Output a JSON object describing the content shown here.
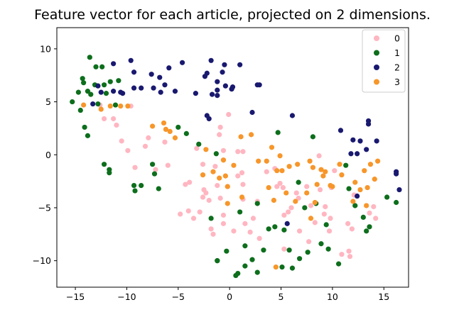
{
  "chart_data": {
    "type": "scatter",
    "title": "Feature vector for each article, projected on 2 dimensions.",
    "xlabel": "",
    "ylabel": "",
    "xlim": [
      -16.8,
      17.4
    ],
    "ylim": [
      -12.5,
      12.0
    ],
    "xticks": [
      -15,
      -10,
      -5,
      0,
      5,
      10,
      15
    ],
    "yticks": [
      -10,
      -5,
      0,
      5,
      10
    ],
    "tick_labels": {
      "x": [
        "−15",
        "−10",
        "−5",
        "0",
        "5",
        "10",
        "15"
      ],
      "y": [
        "−10",
        "−5",
        "0",
        "5",
        "10"
      ]
    },
    "grid": false,
    "legend_position": "top-right",
    "series": [
      {
        "name": "0",
        "color": "#ffb6c1",
        "points": [
          [
            -12.6,
            4.7
          ],
          [
            -12.2,
            3.4
          ],
          [
            -11.3,
            3.4
          ],
          [
            -11.0,
            2.8
          ],
          [
            -10.5,
            1.3
          ],
          [
            -9.9,
            0.4
          ],
          [
            -9.6,
            4.6
          ],
          [
            -9.2,
            -1.2
          ],
          [
            -8.2,
            0.8
          ],
          [
            -7.9,
            1.6
          ],
          [
            -7.2,
            -1.4
          ],
          [
            -6.3,
            1.2
          ],
          [
            -6.0,
            -1.0
          ],
          [
            -4.8,
            -5.6
          ],
          [
            -4.3,
            -2.8
          ],
          [
            -4.0,
            -5.3
          ],
          [
            -3.9,
            -2.6
          ],
          [
            -3.5,
            -6.0
          ],
          [
            -3.2,
            0.6
          ],
          [
            -2.9,
            -5.4
          ],
          [
            -2.6,
            -4.0
          ],
          [
            -2.6,
            -0.9
          ],
          [
            -2.5,
            -3.3
          ],
          [
            -2.3,
            -3.6
          ],
          [
            -2.0,
            -4.3
          ],
          [
            -1.8,
            -7.0
          ],
          [
            -1.6,
            -7.5
          ],
          [
            -1.4,
            -1.1
          ],
          [
            -1.2,
            -2.9
          ],
          [
            -1.0,
            1.9
          ],
          [
            -0.9,
            -4.1
          ],
          [
            -0.9,
            2.6
          ],
          [
            -0.6,
            0.4
          ],
          [
            -0.6,
            -5.7
          ],
          [
            -0.6,
            -0.5
          ],
          [
            -0.6,
            -6.5
          ],
          [
            -0.2,
            -3.0
          ],
          [
            -0.1,
            3.8
          ],
          [
            0.4,
            -7.2
          ],
          [
            0.8,
            0.3
          ],
          [
            0.8,
            -2.0
          ],
          [
            1.2,
            -1.7
          ],
          [
            1.3,
            0.3
          ],
          [
            1.3,
            -2.8
          ],
          [
            1.3,
            -4.2
          ],
          [
            1.5,
            -6.5
          ],
          [
            2.0,
            -7.3
          ],
          [
            2.3,
            -6.0
          ],
          [
            2.7,
            -4.4
          ],
          [
            2.9,
            -7.9
          ],
          [
            3.6,
            -1.6
          ],
          [
            4.4,
            -1.3
          ],
          [
            4.6,
            -3.0
          ],
          [
            4.9,
            -2.7
          ],
          [
            5.2,
            -3.1
          ],
          [
            5.3,
            -5.7
          ],
          [
            5.3,
            -8.9
          ],
          [
            5.7,
            -5.4
          ],
          [
            6.0,
            -5.0
          ],
          [
            6.5,
            -3.6
          ],
          [
            6.7,
            -4.1
          ],
          [
            6.8,
            -7.2
          ],
          [
            7.5,
            -3.0
          ],
          [
            7.7,
            -8.2
          ],
          [
            7.9,
            -4.8
          ],
          [
            8.3,
            -6.4
          ],
          [
            8.7,
            -0.1
          ],
          [
            8.8,
            -3.3
          ],
          [
            9.2,
            -5.6
          ],
          [
            9.3,
            -4.9
          ],
          [
            9.7,
            -7.2
          ],
          [
            9.8,
            -6.0
          ],
          [
            9.9,
            -3.1
          ],
          [
            10.2,
            -1.5
          ],
          [
            10.9,
            -9.4
          ],
          [
            11.5,
            -6.5
          ],
          [
            11.6,
            -9.1
          ],
          [
            11.7,
            -9.6
          ],
          [
            11.9,
            -7.0
          ],
          [
            12.1,
            -3.8
          ],
          [
            13.6,
            -5.5
          ],
          [
            14.0,
            -4.9
          ],
          [
            14.2,
            -6.0
          ]
        ]
      },
      {
        "name": "1",
        "color": "#0d6e1c",
        "points": [
          [
            -15.3,
            5.0
          ],
          [
            -14.7,
            5.9
          ],
          [
            -14.5,
            4.2
          ],
          [
            -14.3,
            7.2
          ],
          [
            -14.2,
            6.8
          ],
          [
            -13.8,
            6.0
          ],
          [
            -14.1,
            2.6
          ],
          [
            -13.8,
            1.8
          ],
          [
            -13.6,
            9.2
          ],
          [
            -13.5,
            5.7
          ],
          [
            -13.1,
            6.6
          ],
          [
            -13.0,
            8.3
          ],
          [
            -12.8,
            4.8
          ],
          [
            -12.4,
            8.3
          ],
          [
            -12.2,
            6.6
          ],
          [
            -12.2,
            -0.9
          ],
          [
            -12.0,
            5.8
          ],
          [
            -11.7,
            -1.4
          ],
          [
            -11.7,
            -1.7
          ],
          [
            -11.6,
            6.9
          ],
          [
            -11.1,
            4.7
          ],
          [
            -10.8,
            7.0
          ],
          [
            -9.3,
            -2.9
          ],
          [
            -9.2,
            -3.4
          ],
          [
            -8.6,
            -2.9
          ],
          [
            -7.5,
            -0.9
          ],
          [
            -7.3,
            -1.8
          ],
          [
            -6.9,
            -3.2
          ],
          [
            -5.0,
            2.6
          ],
          [
            -4.2,
            2.0
          ],
          [
            -3.0,
            1.0
          ],
          [
            -1.8,
            -6.0
          ],
          [
            -1.2,
            -10.0
          ],
          [
            -1.2,
            -10.0
          ],
          [
            -1.3,
            0.1
          ],
          [
            -0.3,
            -9.1
          ],
          [
            0.6,
            -11.4
          ],
          [
            0.8,
            -11.2
          ],
          [
            1.0,
            -5.4
          ],
          [
            1.5,
            -10.5
          ],
          [
            1.5,
            -8.6
          ],
          [
            2.2,
            -9.9
          ],
          [
            2.7,
            -11.1
          ],
          [
            2.7,
            -4.6
          ],
          [
            3.3,
            -9.0
          ],
          [
            3.8,
            -7.0
          ],
          [
            4.4,
            -6.8
          ],
          [
            4.7,
            2.1
          ],
          [
            5.1,
            -10.6
          ],
          [
            5.3,
            -7.1
          ],
          [
            5.8,
            -9.0
          ],
          [
            6.1,
            -10.7
          ],
          [
            6.7,
            -2.6
          ],
          [
            6.8,
            -9.8
          ],
          [
            7.3,
            -5.0
          ],
          [
            7.6,
            -9.2
          ],
          [
            8.1,
            1.7
          ],
          [
            8.4,
            -4.6
          ],
          [
            8.9,
            -8.4
          ],
          [
            9.4,
            -6.6
          ],
          [
            9.6,
            -8.9
          ],
          [
            10.6,
            -10.3
          ],
          [
            11.3,
            -1.0
          ],
          [
            11.6,
            -3.2
          ],
          [
            12.2,
            -4.8
          ],
          [
            13.0,
            -5.9
          ],
          [
            13.6,
            -6.8
          ],
          [
            13.3,
            -7.2
          ],
          [
            15.3,
            -4.0
          ],
          [
            16.2,
            -4.5
          ]
        ]
      },
      {
        "name": "2",
        "color": "#191970",
        "points": [
          [
            -13.3,
            4.8
          ],
          [
            -12.8,
            6.5
          ],
          [
            -12.5,
            5.9
          ],
          [
            -11.3,
            6.0
          ],
          [
            -11.3,
            8.6
          ],
          [
            -10.6,
            5.9
          ],
          [
            -10.4,
            5.8
          ],
          [
            -9.6,
            8.9
          ],
          [
            -9.3,
            7.8
          ],
          [
            -9.3,
            6.3
          ],
          [
            -8.6,
            6.3
          ],
          [
            -7.6,
            7.6
          ],
          [
            -7.4,
            6.3
          ],
          [
            -6.8,
            7.3
          ],
          [
            -6.7,
            5.9
          ],
          [
            -6.3,
            6.6
          ],
          [
            -5.9,
            8.2
          ],
          [
            -5.3,
            6.0
          ],
          [
            -4.6,
            8.7
          ],
          [
            -3.3,
            5.8
          ],
          [
            -2.4,
            7.4
          ],
          [
            -2.2,
            3.7
          ],
          [
            -2.2,
            7.7
          ],
          [
            -2.0,
            3.4
          ],
          [
            -1.8,
            8.9
          ],
          [
            -1.7,
            5.7
          ],
          [
            -1.2,
            5.6
          ],
          [
            -1.2,
            6.1
          ],
          [
            -1.2,
            6.9
          ],
          [
            -0.7,
            7.8
          ],
          [
            -0.5,
            8.5
          ],
          [
            -0.4,
            6.5
          ],
          [
            0.2,
            6.2
          ],
          [
            0.3,
            6.4
          ],
          [
            1.0,
            8.5
          ],
          [
            2.2,
            4.0
          ],
          [
            2.7,
            6.6
          ],
          [
            2.9,
            6.6
          ],
          [
            5.6,
            -6.5
          ],
          [
            6.1,
            3.7
          ],
          [
            10.8,
            2.3
          ],
          [
            11.8,
            0.1
          ],
          [
            12.0,
            1.4
          ],
          [
            12.4,
            0.1
          ],
          [
            12.7,
            1.3
          ],
          [
            12.4,
            -3.9
          ],
          [
            13.3,
            0.5
          ],
          [
            13.5,
            3.2
          ],
          [
            13.5,
            2.9
          ],
          [
            14.3,
            1.3
          ],
          [
            16.2,
            -1.6
          ],
          [
            16.2,
            -1.8
          ],
          [
            16.5,
            -3.3
          ]
        ]
      },
      {
        "name": "3",
        "color": "#f7962a",
        "points": [
          [
            -14.2,
            4.7
          ],
          [
            -12.5,
            4.3
          ],
          [
            -11.6,
            4.6
          ],
          [
            -10.6,
            4.6
          ],
          [
            -9.9,
            4.6
          ],
          [
            -7.5,
            2.7
          ],
          [
            -6.4,
            3.0
          ],
          [
            -6.2,
            2.4
          ],
          [
            -5.8,
            2.2
          ],
          [
            -5.3,
            1.6
          ],
          [
            -2.6,
            -1.9
          ],
          [
            -2.3,
            0.5
          ],
          [
            -1.6,
            -1.6
          ],
          [
            -1.0,
            -2.2
          ],
          [
            -0.6,
            -0.5
          ],
          [
            -0.4,
            -2.0
          ],
          [
            -0.2,
            -4.6
          ],
          [
            -0.2,
            -3.0
          ],
          [
            0.4,
            -1.0
          ],
          [
            1.1,
            1.7
          ],
          [
            1.2,
            -4.0
          ],
          [
            2.1,
            1.9
          ],
          [
            2.8,
            -0.6
          ],
          [
            3.6,
            -0.6
          ],
          [
            3.8,
            -3.1
          ],
          [
            4.1,
            0.7
          ],
          [
            4.3,
            -4.3
          ],
          [
            4.6,
            -1.5
          ],
          [
            4.9,
            -0.1
          ],
          [
            5.1,
            -1.5
          ],
          [
            5.5,
            -3.6
          ],
          [
            5.8,
            -1.1
          ],
          [
            6.4,
            -4.4
          ],
          [
            6.6,
            -0.9
          ],
          [
            7.5,
            -3.6
          ],
          [
            7.8,
            -0.6
          ],
          [
            7.9,
            -6.0
          ],
          [
            8.1,
            -1.2
          ],
          [
            8.3,
            -4.5
          ],
          [
            8.5,
            -2.8
          ],
          [
            8.9,
            -1.4
          ],
          [
            9.1,
            -2.0
          ],
          [
            9.3,
            -1.6
          ],
          [
            9.8,
            -2.9
          ],
          [
            10.0,
            -3.0
          ],
          [
            10.7,
            -0.9
          ],
          [
            10.9,
            -1.9
          ],
          [
            12.0,
            -4.4
          ],
          [
            12.2,
            -2.6
          ],
          [
            12.7,
            -3.3
          ],
          [
            13.1,
            -1.5
          ],
          [
            13.3,
            -4.8
          ],
          [
            13.4,
            -3.1
          ],
          [
            13.7,
            -0.9
          ],
          [
            14.1,
            -2.3
          ],
          [
            14.4,
            -0.6
          ],
          [
            4.5,
            -10.6
          ]
        ]
      }
    ]
  }
}
